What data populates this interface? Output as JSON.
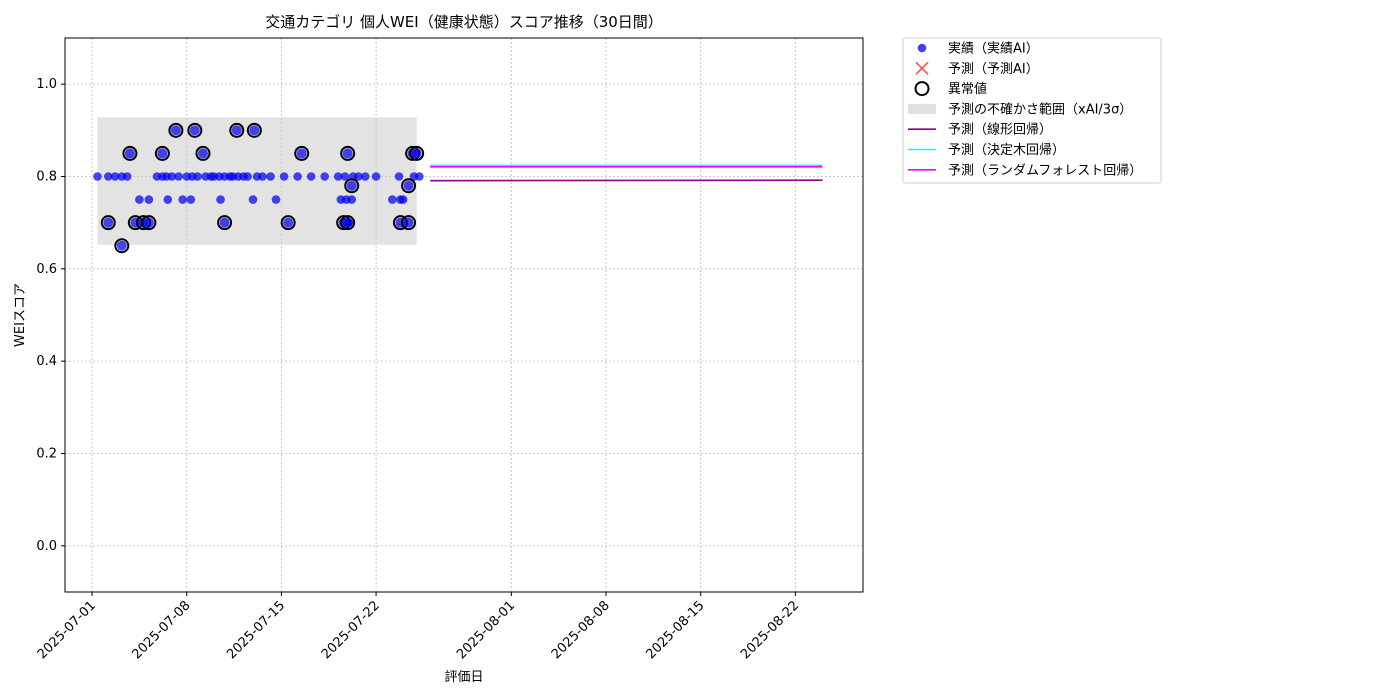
{
  "chart_data": {
    "type": "scatter",
    "title": "交通カテゴリ 個人WEI（健康状態）スコア推移（30日間）",
    "xlabel": "評価日",
    "ylabel": "WEIスコア",
    "xlim": [
      "2025-06-29",
      "2025-08-27"
    ],
    "ylim": [
      -0.1,
      1.1
    ],
    "yticks": [
      0.0,
      0.2,
      0.4,
      0.6,
      0.8,
      1.0
    ],
    "ytick_labels": [
      "0.0",
      "0.2",
      "0.4",
      "0.6",
      "0.8",
      "1.0"
    ],
    "xticks": [
      "2025-07-01",
      "2025-07-08",
      "2025-07-15",
      "2025-07-22",
      "2025-08-01",
      "2025-08-08",
      "2025-08-15",
      "2025-08-22"
    ],
    "grid": true,
    "legend_position": "outside-top-right",
    "legend": [
      {
        "label": "実績（実績AI）",
        "kind": "point",
        "color": "#0000ee"
      },
      {
        "label": "予測（予測AI）",
        "kind": "cross",
        "color": "#ff3333"
      },
      {
        "label": "異常値",
        "kind": "ring",
        "color": "#000000"
      },
      {
        "label": "予測の不確かさ範囲（xAI/3σ）",
        "kind": "band",
        "color": "#cccccc"
      },
      {
        "label": "予測（線形回帰）",
        "kind": "line",
        "color": "#8b008b"
      },
      {
        "label": "予測（決定木回帰）",
        "kind": "line",
        "color": "#00ffff"
      },
      {
        "label": "予測（ランダムフォレスト回帰）",
        "kind": "line",
        "color": "#ff00ff"
      }
    ],
    "uncertainty_band": {
      "x": [
        "2025-07-01.4",
        "2025-07-25"
      ],
      "y": [
        0.652,
        0.928
      ]
    },
    "series": [
      {
        "name": "実績（実績AI）",
        "type": "scatter",
        "color": "#0000ee",
        "points": [
          [
            0.4,
            0.8
          ],
          [
            1.2,
            0.8
          ],
          [
            1.7,
            0.8
          ],
          [
            2.2,
            0.8
          ],
          [
            2.6,
            0.8
          ],
          [
            3.5,
            0.75
          ],
          [
            4.2,
            0.75
          ],
          [
            4.8,
            0.8
          ],
          [
            5.2,
            0.8
          ],
          [
            5.5,
            0.8
          ],
          [
            5.6,
            0.75
          ],
          [
            5.9,
            0.8
          ],
          [
            6.4,
            0.8
          ],
          [
            6.7,
            0.75
          ],
          [
            7.0,
            0.8
          ],
          [
            7.3,
            0.75
          ],
          [
            7.4,
            0.8
          ],
          [
            7.8,
            0.8
          ],
          [
            8.4,
            0.8
          ],
          [
            8.8,
            0.8
          ],
          [
            9.0,
            0.8
          ],
          [
            9.4,
            0.8
          ],
          [
            9.5,
            0.75
          ],
          [
            9.8,
            0.8
          ],
          [
            10.2,
            0.8
          ],
          [
            10.4,
            0.8
          ],
          [
            10.8,
            0.8
          ],
          [
            11.2,
            0.8
          ],
          [
            11.5,
            0.8
          ],
          [
            11.9,
            0.75
          ],
          [
            12.2,
            0.8
          ],
          [
            12.6,
            0.8
          ],
          [
            13.2,
            0.8
          ],
          [
            13.6,
            0.75
          ],
          [
            14.2,
            0.8
          ],
          [
            15.2,
            0.8
          ],
          [
            16.2,
            0.8
          ],
          [
            17.2,
            0.8
          ],
          [
            18.2,
            0.8
          ],
          [
            18.4,
            0.75
          ],
          [
            18.7,
            0.8
          ],
          [
            18.8,
            0.75
          ],
          [
            19.0,
            0.7
          ],
          [
            19.2,
            0.75
          ],
          [
            19.3,
            0.8
          ],
          [
            19.7,
            0.8
          ],
          [
            20.2,
            0.8
          ],
          [
            21.0,
            0.8
          ],
          [
            22.2,
            0.75
          ],
          [
            22.7,
            0.8
          ],
          [
            22.8,
            0.75
          ],
          [
            23.0,
            0.75
          ],
          [
            23.8,
            0.8
          ],
          [
            24.2,
            0.8
          ]
        ]
      },
      {
        "name": "異常値",
        "type": "scatter",
        "color": "#000000",
        "points": [
          [
            1.2,
            0.7
          ],
          [
            2.2,
            0.65
          ],
          [
            2.8,
            0.85
          ],
          [
            3.2,
            0.7
          ],
          [
            3.8,
            0.7
          ],
          [
            4.2,
            0.7
          ],
          [
            5.2,
            0.85
          ],
          [
            6.2,
            0.9
          ],
          [
            7.6,
            0.9
          ],
          [
            8.2,
            0.85
          ],
          [
            9.8,
            0.7
          ],
          [
            10.7,
            0.9
          ],
          [
            12.0,
            0.9
          ],
          [
            14.5,
            0.7
          ],
          [
            15.5,
            0.85
          ],
          [
            18.6,
            0.7
          ],
          [
            18.9,
            0.7
          ],
          [
            18.9,
            0.85
          ],
          [
            19.2,
            0.78
          ],
          [
            22.8,
            0.7
          ],
          [
            23.4,
            0.7
          ],
          [
            23.4,
            0.78
          ],
          [
            23.7,
            0.85
          ],
          [
            24.0,
            0.85
          ]
        ]
      },
      {
        "name": "予測（線形回帰）",
        "type": "line",
        "color": "#8b008b",
        "x": [
          "2025-07-26",
          "2025-08-24"
        ],
        "y": [
          0.791,
          0.792
        ]
      },
      {
        "name": "予測（決定木回帰）",
        "type": "line",
        "color": "#00ffff",
        "x": [
          "2025-07-26",
          "2025-08-24"
        ],
        "y": [
          0.824,
          0.824
        ]
      },
      {
        "name": "予測（ランダムフォレスト回帰）",
        "type": "line",
        "color": "#ff00ff",
        "x": [
          "2025-07-26",
          "2025-08-24"
        ],
        "y": [
          0.821,
          0.821
        ]
      }
    ]
  }
}
